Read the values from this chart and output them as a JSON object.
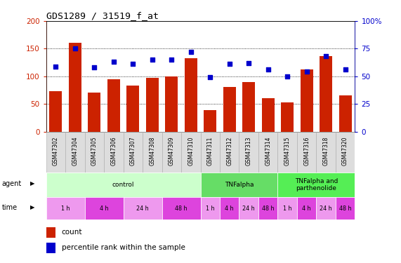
{
  "title": "GDS1289 / 31519_f_at",
  "samples": [
    "GSM47302",
    "GSM47304",
    "GSM47305",
    "GSM47306",
    "GSM47307",
    "GSM47308",
    "GSM47309",
    "GSM47310",
    "GSM47311",
    "GSM47312",
    "GSM47313",
    "GSM47314",
    "GSM47315",
    "GSM47316",
    "GSM47318",
    "GSM47320"
  ],
  "counts": [
    73,
    161,
    71,
    95,
    83,
    97,
    100,
    133,
    39,
    81,
    90,
    60,
    53,
    113,
    136,
    65
  ],
  "percentiles": [
    59,
    75,
    58,
    63,
    61,
    65,
    65,
    72,
    49,
    61,
    62,
    56,
    50,
    54,
    68,
    56
  ],
  "bar_color": "#cc2200",
  "dot_color": "#0000cc",
  "ylim_left": [
    0,
    200
  ],
  "ylim_right": [
    0,
    100
  ],
  "yticks_left": [
    0,
    50,
    100,
    150,
    200
  ],
  "yticks_right": [
    0,
    25,
    50,
    75,
    100
  ],
  "ytick_labels_right": [
    "0",
    "25",
    "50",
    "75",
    "100%"
  ],
  "agent_groups": [
    {
      "label": "control",
      "start": 0,
      "end": 8,
      "color": "#ccffcc"
    },
    {
      "label": "TNFalpha",
      "start": 8,
      "end": 12,
      "color": "#66dd66"
    },
    {
      "label": "TNFalpha and\nparthenolide",
      "start": 12,
      "end": 16,
      "color": "#55ee55"
    }
  ],
  "time_all_groups": [
    {
      "label": "1 h",
      "start": 0,
      "end": 2,
      "color": "#ee99ee"
    },
    {
      "label": "4 h",
      "start": 2,
      "end": 4,
      "color": "#dd44dd"
    },
    {
      "label": "24 h",
      "start": 4,
      "end": 6,
      "color": "#ee99ee"
    },
    {
      "label": "48 h",
      "start": 6,
      "end": 8,
      "color": "#dd44dd"
    },
    {
      "label": "1 h",
      "start": 8,
      "end": 9,
      "color": "#ee99ee"
    },
    {
      "label": "4 h",
      "start": 9,
      "end": 10,
      "color": "#dd44dd"
    },
    {
      "label": "24 h",
      "start": 10,
      "end": 11,
      "color": "#ee99ee"
    },
    {
      "label": "48 h",
      "start": 11,
      "end": 12,
      "color": "#dd44dd"
    },
    {
      "label": "1 h",
      "start": 12,
      "end": 13,
      "color": "#ee99ee"
    },
    {
      "label": "4 h",
      "start": 13,
      "end": 14,
      "color": "#dd44dd"
    },
    {
      "label": "24 h",
      "start": 14,
      "end": 15,
      "color": "#ee99ee"
    },
    {
      "label": "48 h",
      "start": 15,
      "end": 16,
      "color": "#dd44dd"
    }
  ],
  "legend_count_color": "#cc2200",
  "legend_pct_color": "#0000cc",
  "bg_color": "#ffffff",
  "tick_label_color_left": "#cc2200",
  "tick_label_color_right": "#0000cc",
  "sample_box_color": "#dddddd",
  "sample_box_edge": "#aaaaaa"
}
